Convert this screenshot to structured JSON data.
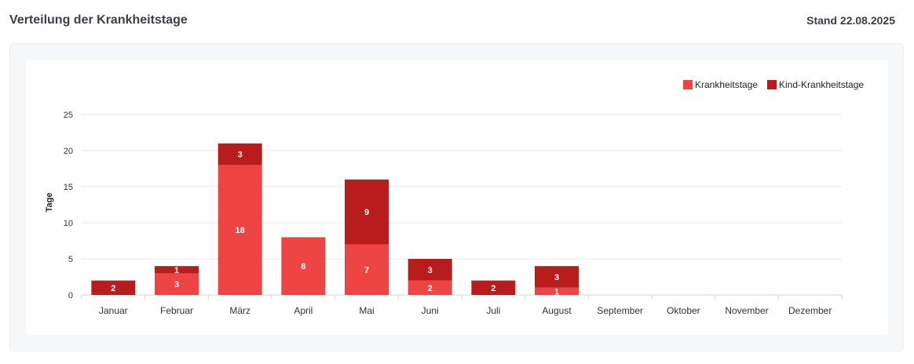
{
  "header": {
    "title": "Verteilung der Krankheitstage",
    "stand": "Stand 22.08.2025"
  },
  "colors": {
    "krankheitstage": "#ef4444",
    "kind_krankheitstage": "#b91c1c",
    "grid": "#e5e7eb",
    "axis_text": "#333333"
  },
  "chart_data": {
    "type": "bar",
    "stacked": true,
    "categories": [
      "Januar",
      "Februar",
      "März",
      "April",
      "Mai",
      "Juni",
      "Juli",
      "August",
      "September",
      "Oktober",
      "November",
      "Dezember"
    ],
    "series": [
      {
        "name": "Krankheitstage",
        "values": [
          0,
          3,
          18,
          8,
          7,
          2,
          0,
          1,
          0,
          0,
          0,
          0
        ]
      },
      {
        "name": "Kind-Krankheitstage",
        "values": [
          2,
          1,
          3,
          0,
          9,
          3,
          2,
          3,
          0,
          0,
          0,
          0
        ]
      }
    ],
    "ylabel": "Tage",
    "ylim": [
      0,
      25
    ],
    "yticks": [
      0,
      5,
      10,
      15,
      20,
      25
    ],
    "legend": "top-right",
    "grid": true
  }
}
